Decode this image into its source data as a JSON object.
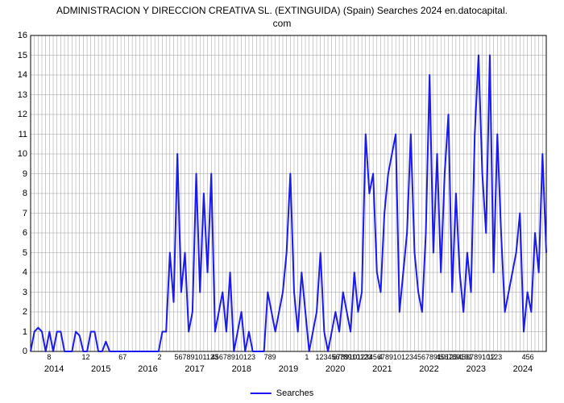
{
  "chart": {
    "type": "line",
    "title_line1": "ADMINISTRACION Y DIRECCION CREATIVA SL. (EXTINGUIDA) (Spain) Searches 2024 en.datocapital.",
    "title_line2": "com",
    "title_fontsize": 12,
    "background_color": "#ffffff",
    "grid_color": "#9b9b9b",
    "grid_width": 0.5,
    "line_color": "#1a1af0",
    "line_width": 2,
    "ylim": [
      0,
      16
    ],
    "yticks": [
      0,
      1,
      2,
      3,
      4,
      5,
      6,
      7,
      8,
      9,
      10,
      11,
      12,
      13,
      14,
      15,
      16
    ],
    "ytick_fontsize": 11,
    "x_monthly_labels_visual": [
      "8",
      "12",
      "67",
      "2",
      "56789101123",
      "45678910123",
      "789",
      "1",
      "12345678910123",
      "4",
      "678910123456789101234567891012345678910123",
      "456789101",
      "12",
      "456"
    ],
    "x_year_labels": [
      "2014",
      "2015",
      "2016",
      "2017",
      "2018",
      "2019",
      "2020",
      "2021",
      "2022",
      "2023",
      "2024"
    ],
    "legend_label": "Searches",
    "legend_fontsize": 11,
    "series": [
      0,
      1,
      1.2,
      1,
      0,
      1,
      0,
      1,
      1,
      0,
      0,
      0,
      1,
      0.8,
      0,
      0,
      1,
      1,
      0,
      0,
      0.5,
      0,
      0,
      0,
      0,
      0,
      0,
      0,
      0,
      0,
      0,
      0,
      0,
      0,
      0,
      1,
      1,
      5,
      2.5,
      10,
      3,
      5,
      1,
      2,
      9,
      3,
      8,
      4,
      9,
      1,
      2,
      3,
      1,
      4,
      0,
      1,
      2,
      0,
      1,
      0,
      0,
      0,
      0,
      3,
      2,
      1,
      2,
      3,
      5,
      9,
      3,
      1,
      4,
      2,
      0,
      1,
      2,
      5,
      1,
      0,
      1,
      2,
      1,
      3,
      2,
      1,
      4,
      2,
      3,
      11,
      8,
      9,
      4,
      3,
      7,
      9,
      10,
      11,
      2,
      4,
      6,
      11,
      5,
      3,
      2,
      6,
      14,
      5,
      10,
      4,
      9,
      12,
      3,
      8,
      4,
      2,
      5,
      3,
      11,
      15,
      9,
      6,
      15,
      4,
      11,
      6,
      2,
      3,
      4,
      5,
      7,
      1,
      3,
      2,
      6,
      4,
      10,
      5
    ]
  }
}
